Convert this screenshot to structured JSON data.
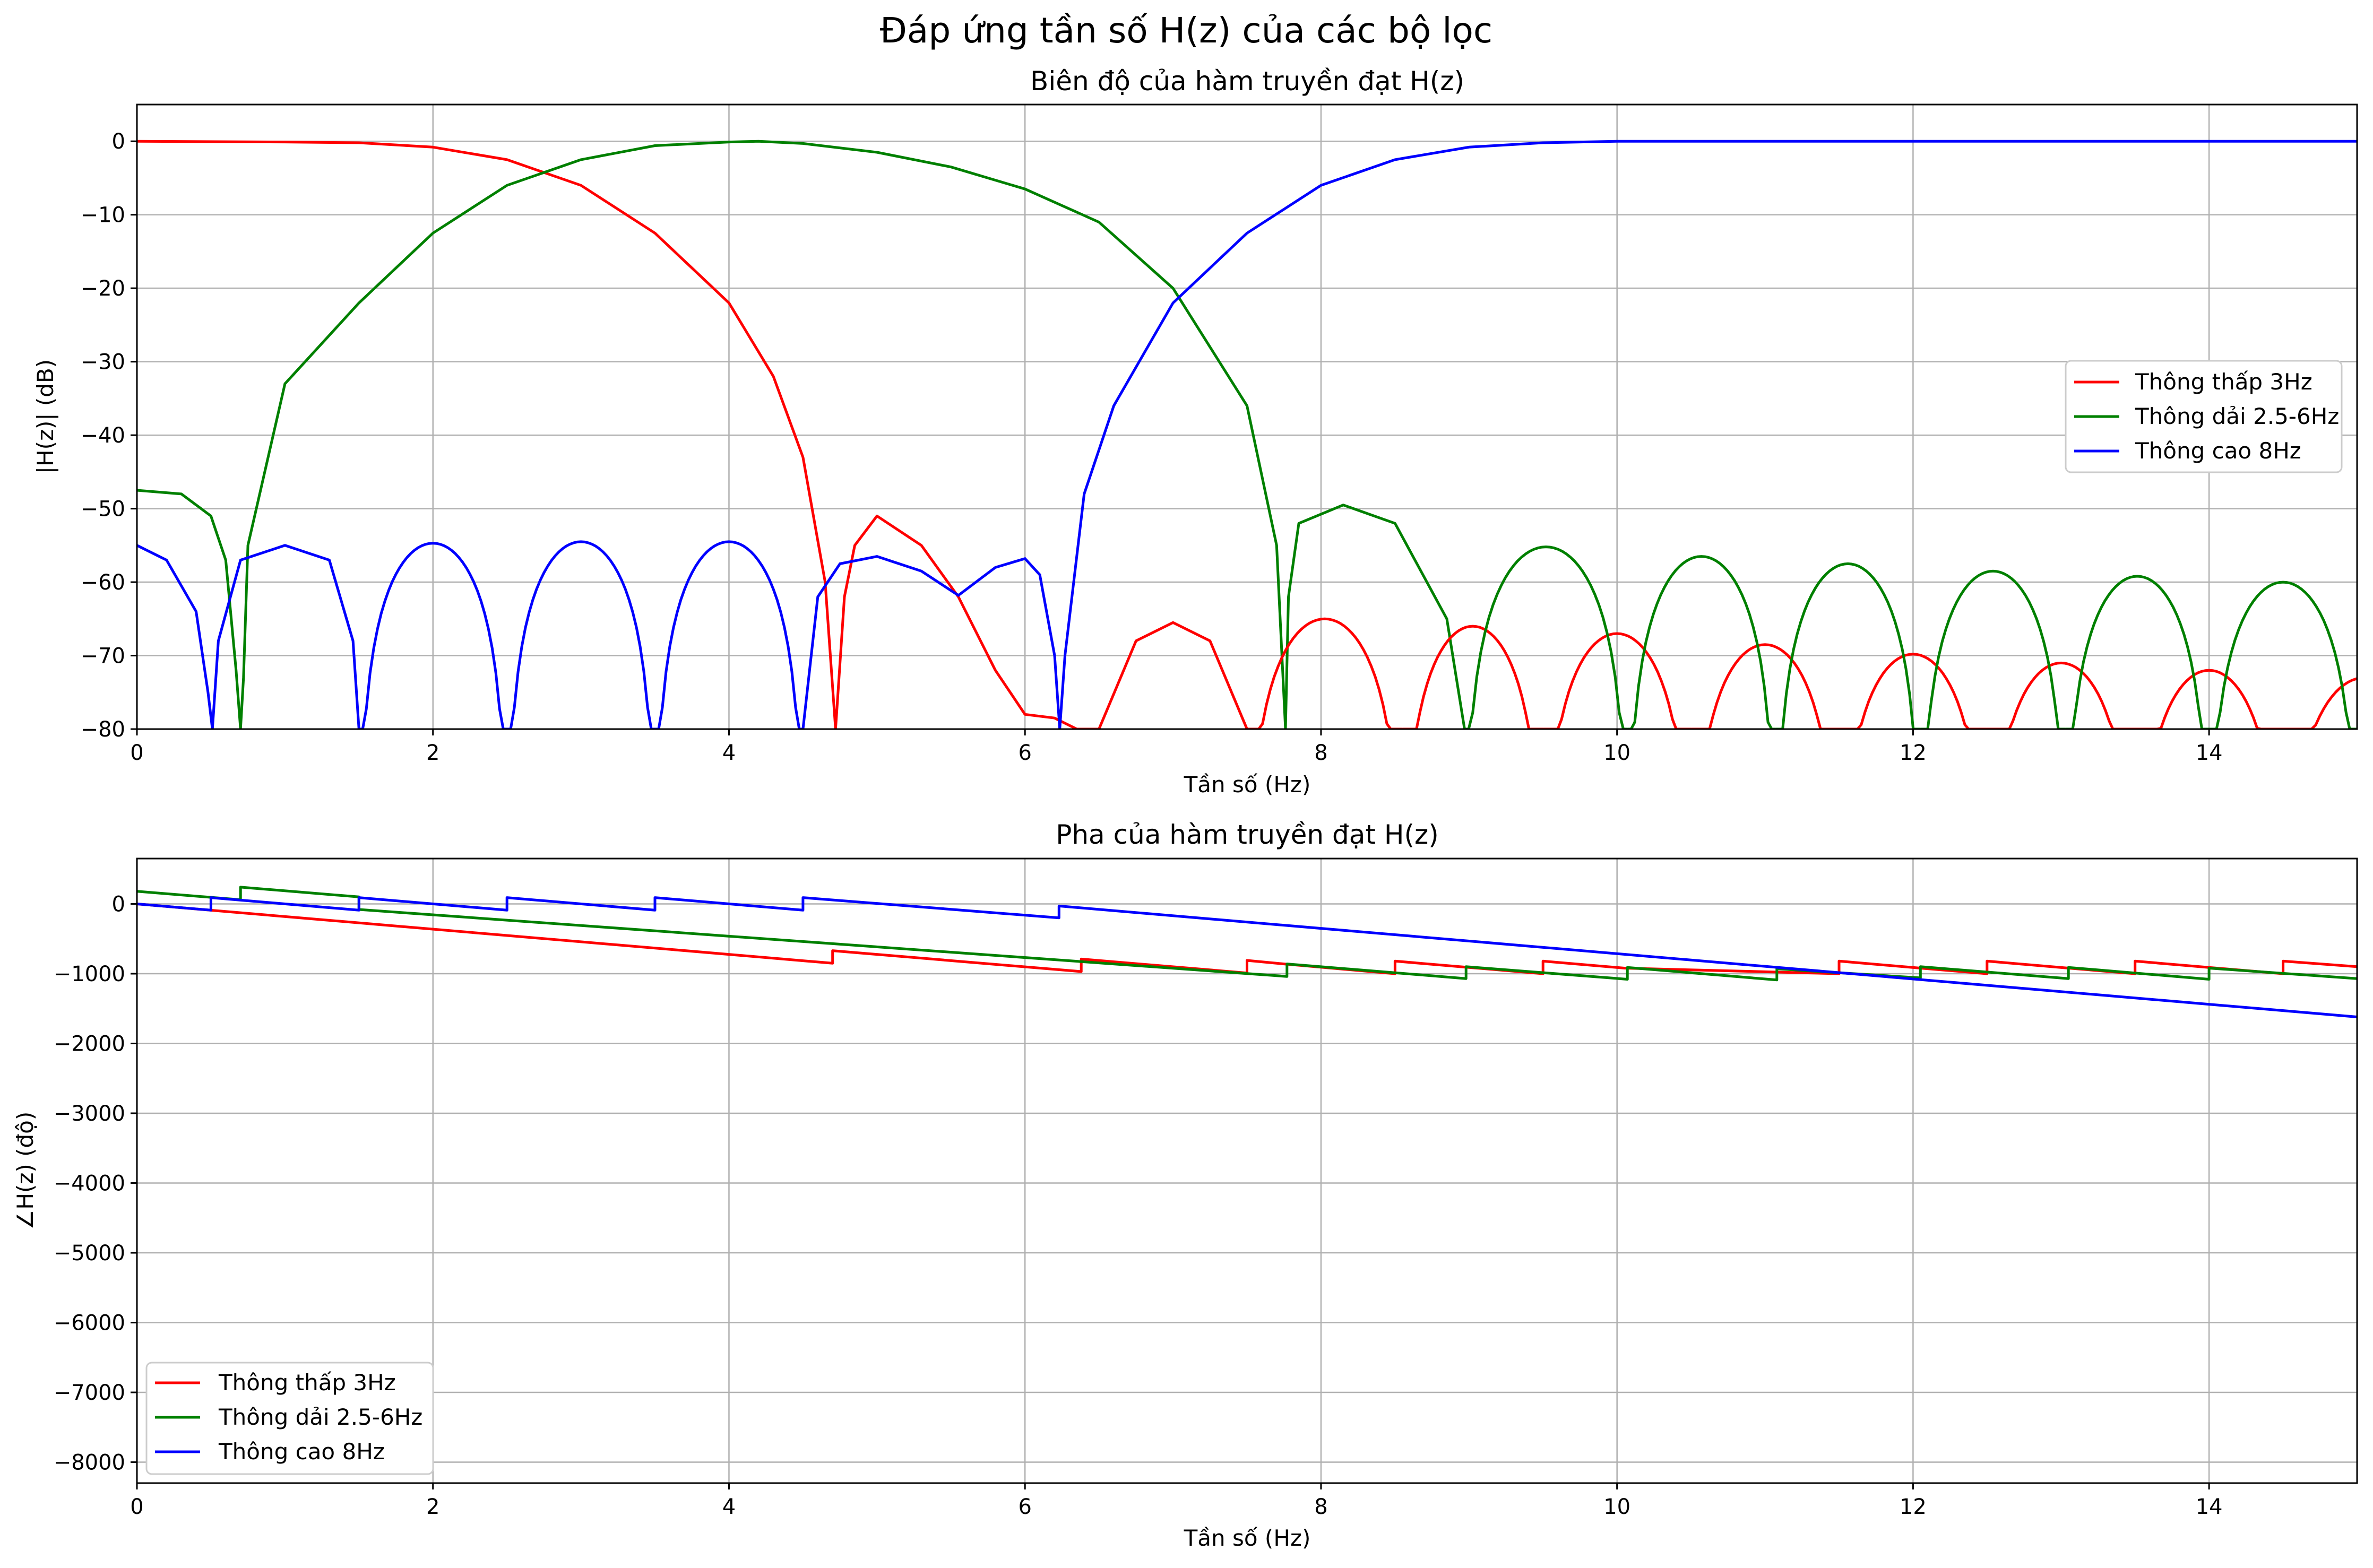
{
  "figure": {
    "suptitle": "Đáp ứng tần số H(z) của các bộ lọc"
  },
  "colors": {
    "lowpass": "#ff0000",
    "bandpass": "#008000",
    "highpass": "#0000ff",
    "grid": "#b0b0b0"
  },
  "chart_data": [
    {
      "type": "line",
      "title": "Biên độ của hàm truyền đạt H(z)",
      "xlabel": "Tần số (Hz)",
      "ylabel": "|H(z)| (dB)",
      "xlim": [
        0,
        15
      ],
      "ylim": [
        -80,
        5
      ],
      "xticks": [
        0,
        2,
        4,
        6,
        8,
        10,
        12,
        14
      ],
      "yticks": [
        0,
        -10,
        -20,
        -30,
        -40,
        -50,
        -60,
        -70,
        -80
      ],
      "grid": true,
      "legend_position": "center-right",
      "series": [
        {
          "name": "Thông thấp 3Hz",
          "color": "#ff0000",
          "x": [
            0,
            1,
            1.5,
            2,
            2.5,
            3,
            3.5,
            4,
            4.3,
            4.5,
            4.65,
            4.72,
            4.78,
            4.85,
            5,
            5.3,
            5.55,
            5.8,
            6,
            6.2,
            6.35,
            6.5,
            6.75,
            7,
            7.25,
            7.5
          ],
          "y": [
            0,
            -0.1,
            -0.2,
            -0.8,
            -2.5,
            -6,
            -12.5,
            -22,
            -32,
            -43,
            -60,
            -80,
            -62,
            -55,
            -51,
            -55,
            -62,
            -72,
            -78,
            -78.5,
            -80,
            -80,
            -68,
            -65.5,
            -68,
            -80
          ]
        },
        {
          "name": "Thông dải 2.5-6Hz",
          "color": "#008000",
          "x": [
            0,
            0.3,
            0.5,
            0.6,
            0.67,
            0.7,
            0.72,
            0.75,
            1,
            1.5,
            2,
            2.5,
            3,
            3.5,
            4,
            4.2,
            4.5,
            5,
            5.5,
            6,
            6.5,
            7,
            7.5,
            7.7,
            7.76,
            7.78,
            7.85,
            8.15,
            8.5,
            8.85,
            8.97
          ],
          "y": [
            -47.5,
            -48,
            -51,
            -57,
            -72,
            -80,
            -73,
            -55,
            -33,
            -22,
            -12.5,
            -6,
            -2.5,
            -0.6,
            -0.1,
            0,
            -0.3,
            -1.5,
            -3.5,
            -6.5,
            -11,
            -20,
            -36,
            -55,
            -80,
            -62,
            -52,
            -49.5,
            -52,
            -65,
            -80
          ]
        },
        {
          "name": "Thông cao 8Hz",
          "color": "#0000ff",
          "x": [
            0,
            0.2,
            0.4,
            0.48,
            0.51,
            0.55,
            0.7,
            1,
            1.3,
            1.46,
            1.5
          ],
          "y": [
            -55,
            -57,
            -64,
            -75,
            -80,
            -68,
            -57,
            -55,
            -57,
            -68,
            -80
          ]
        }
      ]
    },
    {
      "type": "line",
      "title": "Pha của hàm truyền đạt H(z)",
      "xlabel": "Tần số (Hz)",
      "ylabel": "∠H(z) (độ)",
      "xlim": [
        0,
        15
      ],
      "ylim": [
        -8300,
        650
      ],
      "xticks": [
        0,
        2,
        4,
        6,
        8,
        10,
        12,
        14
      ],
      "yticks": [
        0,
        -1000,
        -2000,
        -3000,
        -4000,
        -5000,
        -6000,
        -7000,
        -8000
      ],
      "grid": true,
      "legend_position": "lower-left",
      "series": [
        {
          "name": "Thông thấp 3Hz",
          "color": "#ff0000",
          "x": [
            0,
            4.7,
            4.7,
            6.38,
            6.38,
            7.5,
            7.5,
            7.75,
            8.5,
            8.5,
            9,
            9.5,
            9.5,
            10.05,
            11.5,
            11.5,
            12.05,
            12.5,
            12.5,
            13.05,
            13.5,
            13.5,
            14,
            14.5,
            14.5,
            15
          ],
          "y": [
            0,
            -850,
            -670,
            -970,
            -790,
            -990,
            -810,
            -860,
            -1000,
            -820,
            -910,
            -1000,
            -820,
            -920,
            -1000,
            -820,
            -920,
            -1000,
            -820,
            -920,
            -1000,
            -820,
            -910,
            -1000,
            -820,
            -900
          ]
        },
        {
          "name": "Thông dải 2.5-6Hz",
          "color": "#008000",
          "x": [
            0,
            0.7,
            0.7,
            1.5,
            1.5,
            7.77,
            7.77,
            8.98,
            8.98,
            10.07,
            10.07,
            11.08,
            11.08,
            12.05,
            12.05,
            13.05,
            13.05,
            14,
            14,
            15
          ],
          "y": [
            180,
            60,
            240,
            100,
            -80,
            -1040,
            -860,
            -1070,
            -900,
            -1080,
            -910,
            -1090,
            -930,
            -1060,
            -900,
            -1070,
            -910,
            -1080,
            -920,
            -1070
          ]
        },
        {
          "name": "Thông cao 8Hz",
          "color": "#0000ff",
          "x": [
            0,
            0.5,
            0.5,
            1.5,
            1.5,
            2.5,
            2.5,
            3.5,
            3.5,
            4.5,
            4.5,
            6.23,
            6.23,
            15
          ],
          "y": [
            0,
            -90,
            90,
            -90,
            90,
            -90,
            90,
            -90,
            90,
            -90,
            90,
            -200,
            -30,
            -1620
          ]
        }
      ]
    }
  ]
}
